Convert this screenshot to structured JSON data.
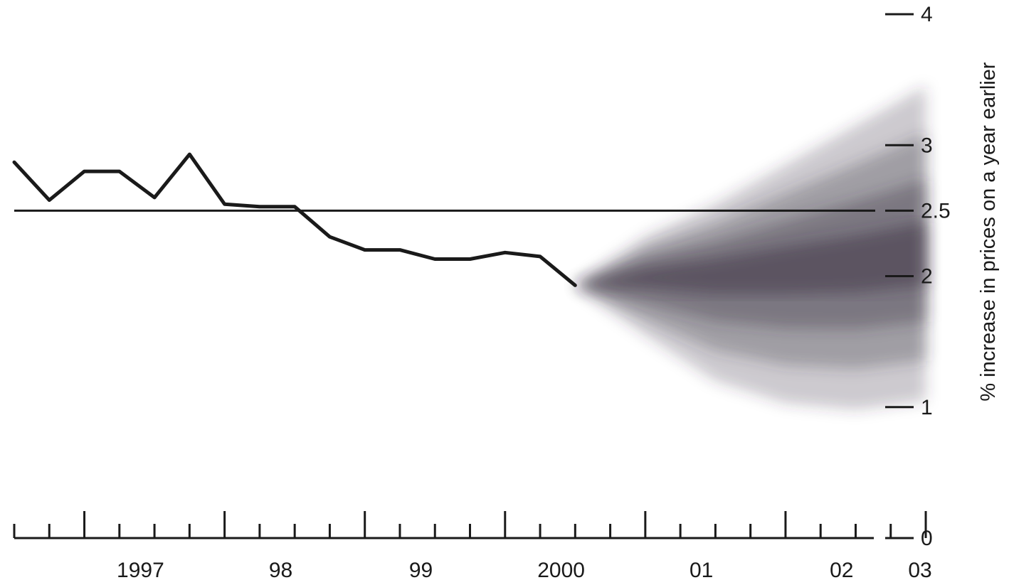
{
  "chart_data": {
    "type": "line",
    "title": "",
    "xlabel": "",
    "ylabel": "% increase in prices on a year earlier",
    "x_tick_labels": [
      "1997",
      "98",
      "99",
      "2000",
      "01",
      "02",
      "03"
    ],
    "x_range": [
      "1996-Q3",
      "2003-Q1"
    ],
    "y_ticks": [
      {
        "value": 0,
        "label": "0"
      },
      {
        "value": 1,
        "label": "1"
      },
      {
        "value": 2,
        "label": "2"
      },
      {
        "value": 2.5,
        "label": "2.5"
      },
      {
        "value": 3,
        "label": "3"
      },
      {
        "value": 4,
        "label": "4"
      }
    ],
    "ylim": [
      0,
      4
    ],
    "target_line": 2.5,
    "grid": false,
    "series": [
      {
        "values": [
          [
            "1996-Q3",
            2.87
          ],
          [
            "1996-Q4",
            2.58
          ],
          [
            "1997-Q1",
            2.8
          ],
          [
            "1997-Q2",
            2.8
          ],
          [
            "1997-Q3",
            2.6
          ],
          [
            "1997-Q4",
            2.93
          ],
          [
            "1998-Q1",
            2.55
          ],
          [
            "1998-Q2",
            2.53
          ],
          [
            "1998-Q3",
            2.53
          ],
          [
            "1998-Q4",
            2.3
          ],
          [
            "1999-Q1",
            2.2
          ],
          [
            "1999-Q2",
            2.2
          ],
          [
            "1999-Q3",
            2.13
          ],
          [
            "1999-Q4",
            2.13
          ],
          [
            "2000-Q1",
            2.18
          ],
          [
            "2000-Q2",
            2.15
          ],
          [
            "2000-Q3",
            1.93
          ]
        ]
      }
    ],
    "fan_projection": {
      "color": "#3d3440",
      "start": "2000-Q3",
      "center": [
        [
          "2000-Q3",
          1.93
        ],
        [
          "2001-Q1",
          2.0
        ],
        [
          "2001-Q3",
          2.03
        ],
        [
          "2002-Q1",
          2.07
        ],
        [
          "2002-Q3",
          2.1
        ],
        [
          "2003-Q1",
          2.15
        ]
      ],
      "upper_bound": [
        [
          "2000-Q3",
          1.93
        ],
        [
          "2001-Q1",
          2.3
        ],
        [
          "2001-Q3",
          2.55
        ],
        [
          "2002-Q1",
          2.85
        ],
        [
          "2002-Q3",
          3.15
        ],
        [
          "2003-Q1",
          3.45
        ]
      ],
      "lower_bound": [
        [
          "2000-Q3",
          1.93
        ],
        [
          "2001-Q1",
          1.55
        ],
        [
          "2001-Q3",
          1.2
        ],
        [
          "2002-Q1",
          1.03
        ],
        [
          "2002-Q3",
          0.98
        ],
        [
          "2003-Q1",
          1.05
        ]
      ]
    }
  }
}
